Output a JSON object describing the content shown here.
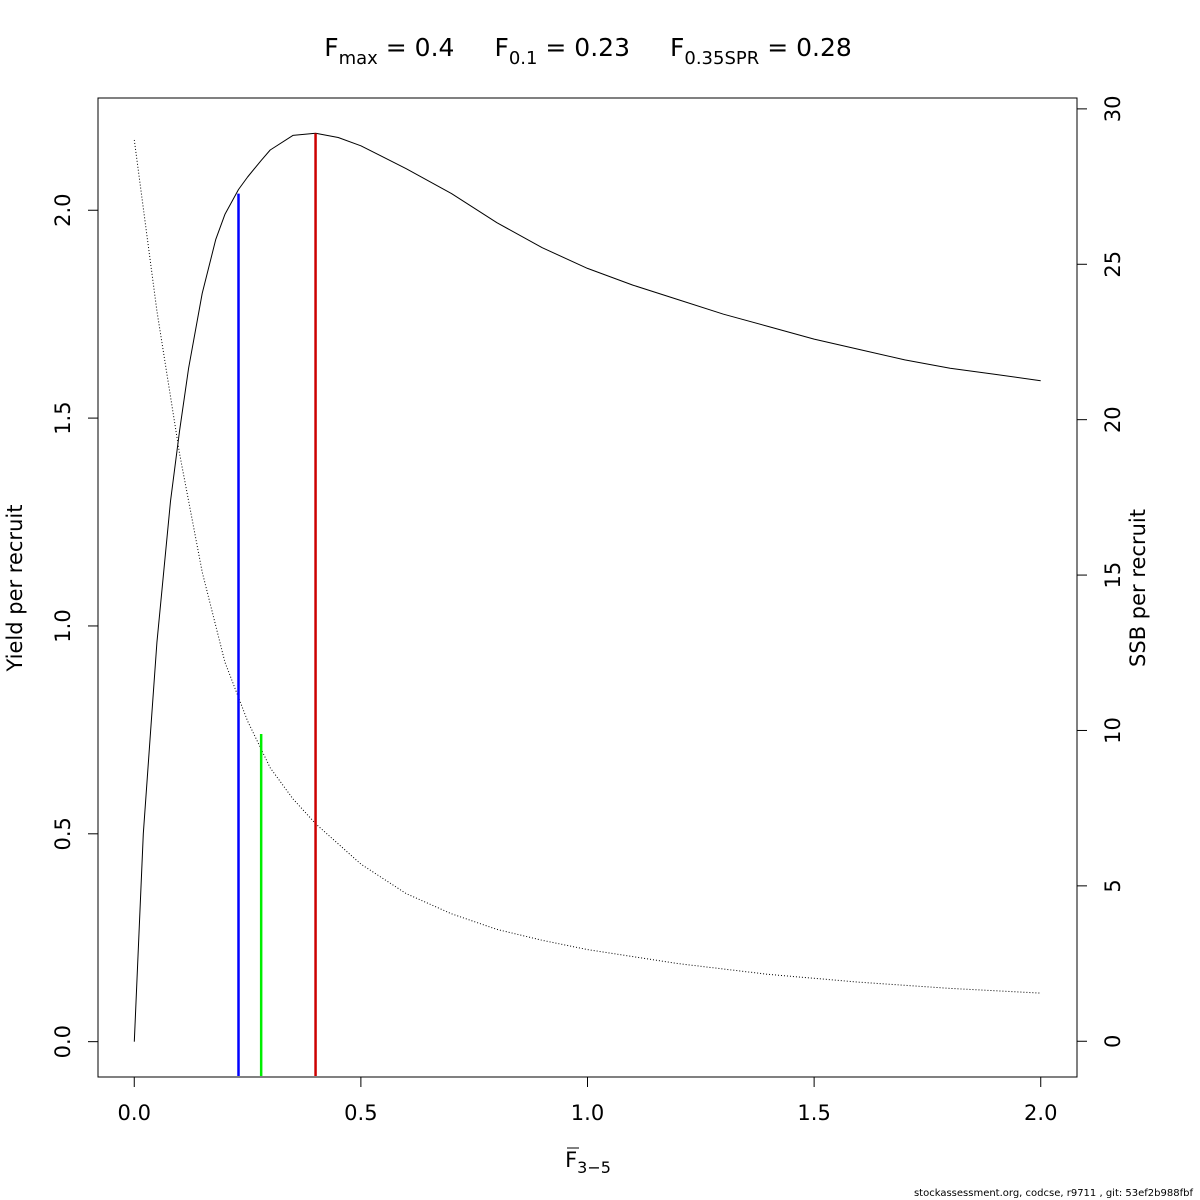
{
  "chart_data": {
    "type": "line",
    "title": {
      "parts": [
        {
          "main": "F",
          "sub": "max",
          "value": " = 0.4"
        },
        {
          "main": "F",
          "sub": "0.1",
          "value": " = 0.23"
        },
        {
          "main": "F",
          "sub": "0.35SPR",
          "value": " = 0.28"
        }
      ]
    },
    "xlabel": {
      "main": "F",
      "sub": "3−5"
    },
    "ylabel_left": "Yield per recruit",
    "ylabel_right": "SSB per recruit",
    "xlim": [
      -0.08,
      2.08
    ],
    "ylim_left": [
      -0.085,
      2.27
    ],
    "ylim_right": [
      -1.15,
      30.35
    ],
    "x_ticks": [
      {
        "value": 0.0,
        "label": "0.0"
      },
      {
        "value": 0.5,
        "label": "0.5"
      },
      {
        "value": 1.0,
        "label": "1.0"
      },
      {
        "value": 1.5,
        "label": "1.5"
      },
      {
        "value": 2.0,
        "label": "2.0"
      }
    ],
    "y_left_ticks": [
      {
        "value": 0.0,
        "label": "0.0"
      },
      {
        "value": 0.5,
        "label": "0.5"
      },
      {
        "value": 1.0,
        "label": "1.0"
      },
      {
        "value": 1.5,
        "label": "1.5"
      },
      {
        "value": 2.0,
        "label": "2.0"
      }
    ],
    "y_right_ticks": [
      {
        "value": 0,
        "label": "0"
      },
      {
        "value": 5,
        "label": "5"
      },
      {
        "value": 10,
        "label": "10"
      },
      {
        "value": 15,
        "label": "15"
      },
      {
        "value": 20,
        "label": "20"
      },
      {
        "value": 25,
        "label": "25"
      },
      {
        "value": 30,
        "label": "30"
      }
    ],
    "series": [
      {
        "axis": "left",
        "style": "solid",
        "color": "#000000",
        "x": [
          0,
          0.02,
          0.05,
          0.08,
          0.1,
          0.12,
          0.15,
          0.18,
          0.2,
          0.23,
          0.25,
          0.28,
          0.3,
          0.35,
          0.4,
          0.45,
          0.5,
          0.6,
          0.7,
          0.8,
          0.9,
          1.0,
          1.1,
          1.2,
          1.3,
          1.4,
          1.5,
          1.6,
          1.7,
          1.8,
          1.9,
          2.0
        ],
        "y": [
          0,
          0.5,
          0.96,
          1.3,
          1.47,
          1.62,
          1.8,
          1.93,
          1.99,
          2.05,
          2.08,
          2.12,
          2.145,
          2.18,
          2.185,
          2.175,
          2.155,
          2.1,
          2.04,
          1.97,
          1.91,
          1.86,
          1.82,
          1.785,
          1.75,
          1.72,
          1.69,
          1.665,
          1.64,
          1.62,
          1.605,
          1.59
        ]
      },
      {
        "axis": "right",
        "style": "dotted",
        "color": "#000000",
        "x": [
          0,
          0.05,
          0.1,
          0.15,
          0.2,
          0.25,
          0.3,
          0.35,
          0.4,
          0.5,
          0.6,
          0.7,
          0.8,
          0.9,
          1.0,
          1.2,
          1.4,
          1.6,
          1.8,
          2.0
        ],
        "y": [
          29.0,
          23.5,
          18.9,
          15.1,
          12.2,
          10.3,
          8.8,
          7.8,
          7.0,
          5.7,
          4.75,
          4.1,
          3.6,
          3.25,
          2.95,
          2.5,
          2.15,
          1.9,
          1.7,
          1.55
        ]
      }
    ],
    "reference_lines": [
      {
        "label": "Fmax",
        "x": 0.4,
        "y_top_left": 2.185,
        "color": "#cc0000"
      },
      {
        "label": "F0.1",
        "x": 0.23,
        "y_top_left": 2.04,
        "color": "#0000ff"
      },
      {
        "label": "F0.35SPR",
        "x": 0.28,
        "y_top_left": 0.74,
        "color": "#00ee00"
      }
    ]
  },
  "footer": "stockassessment.org, codcse, r9711 , git: 53ef2b988fbf"
}
